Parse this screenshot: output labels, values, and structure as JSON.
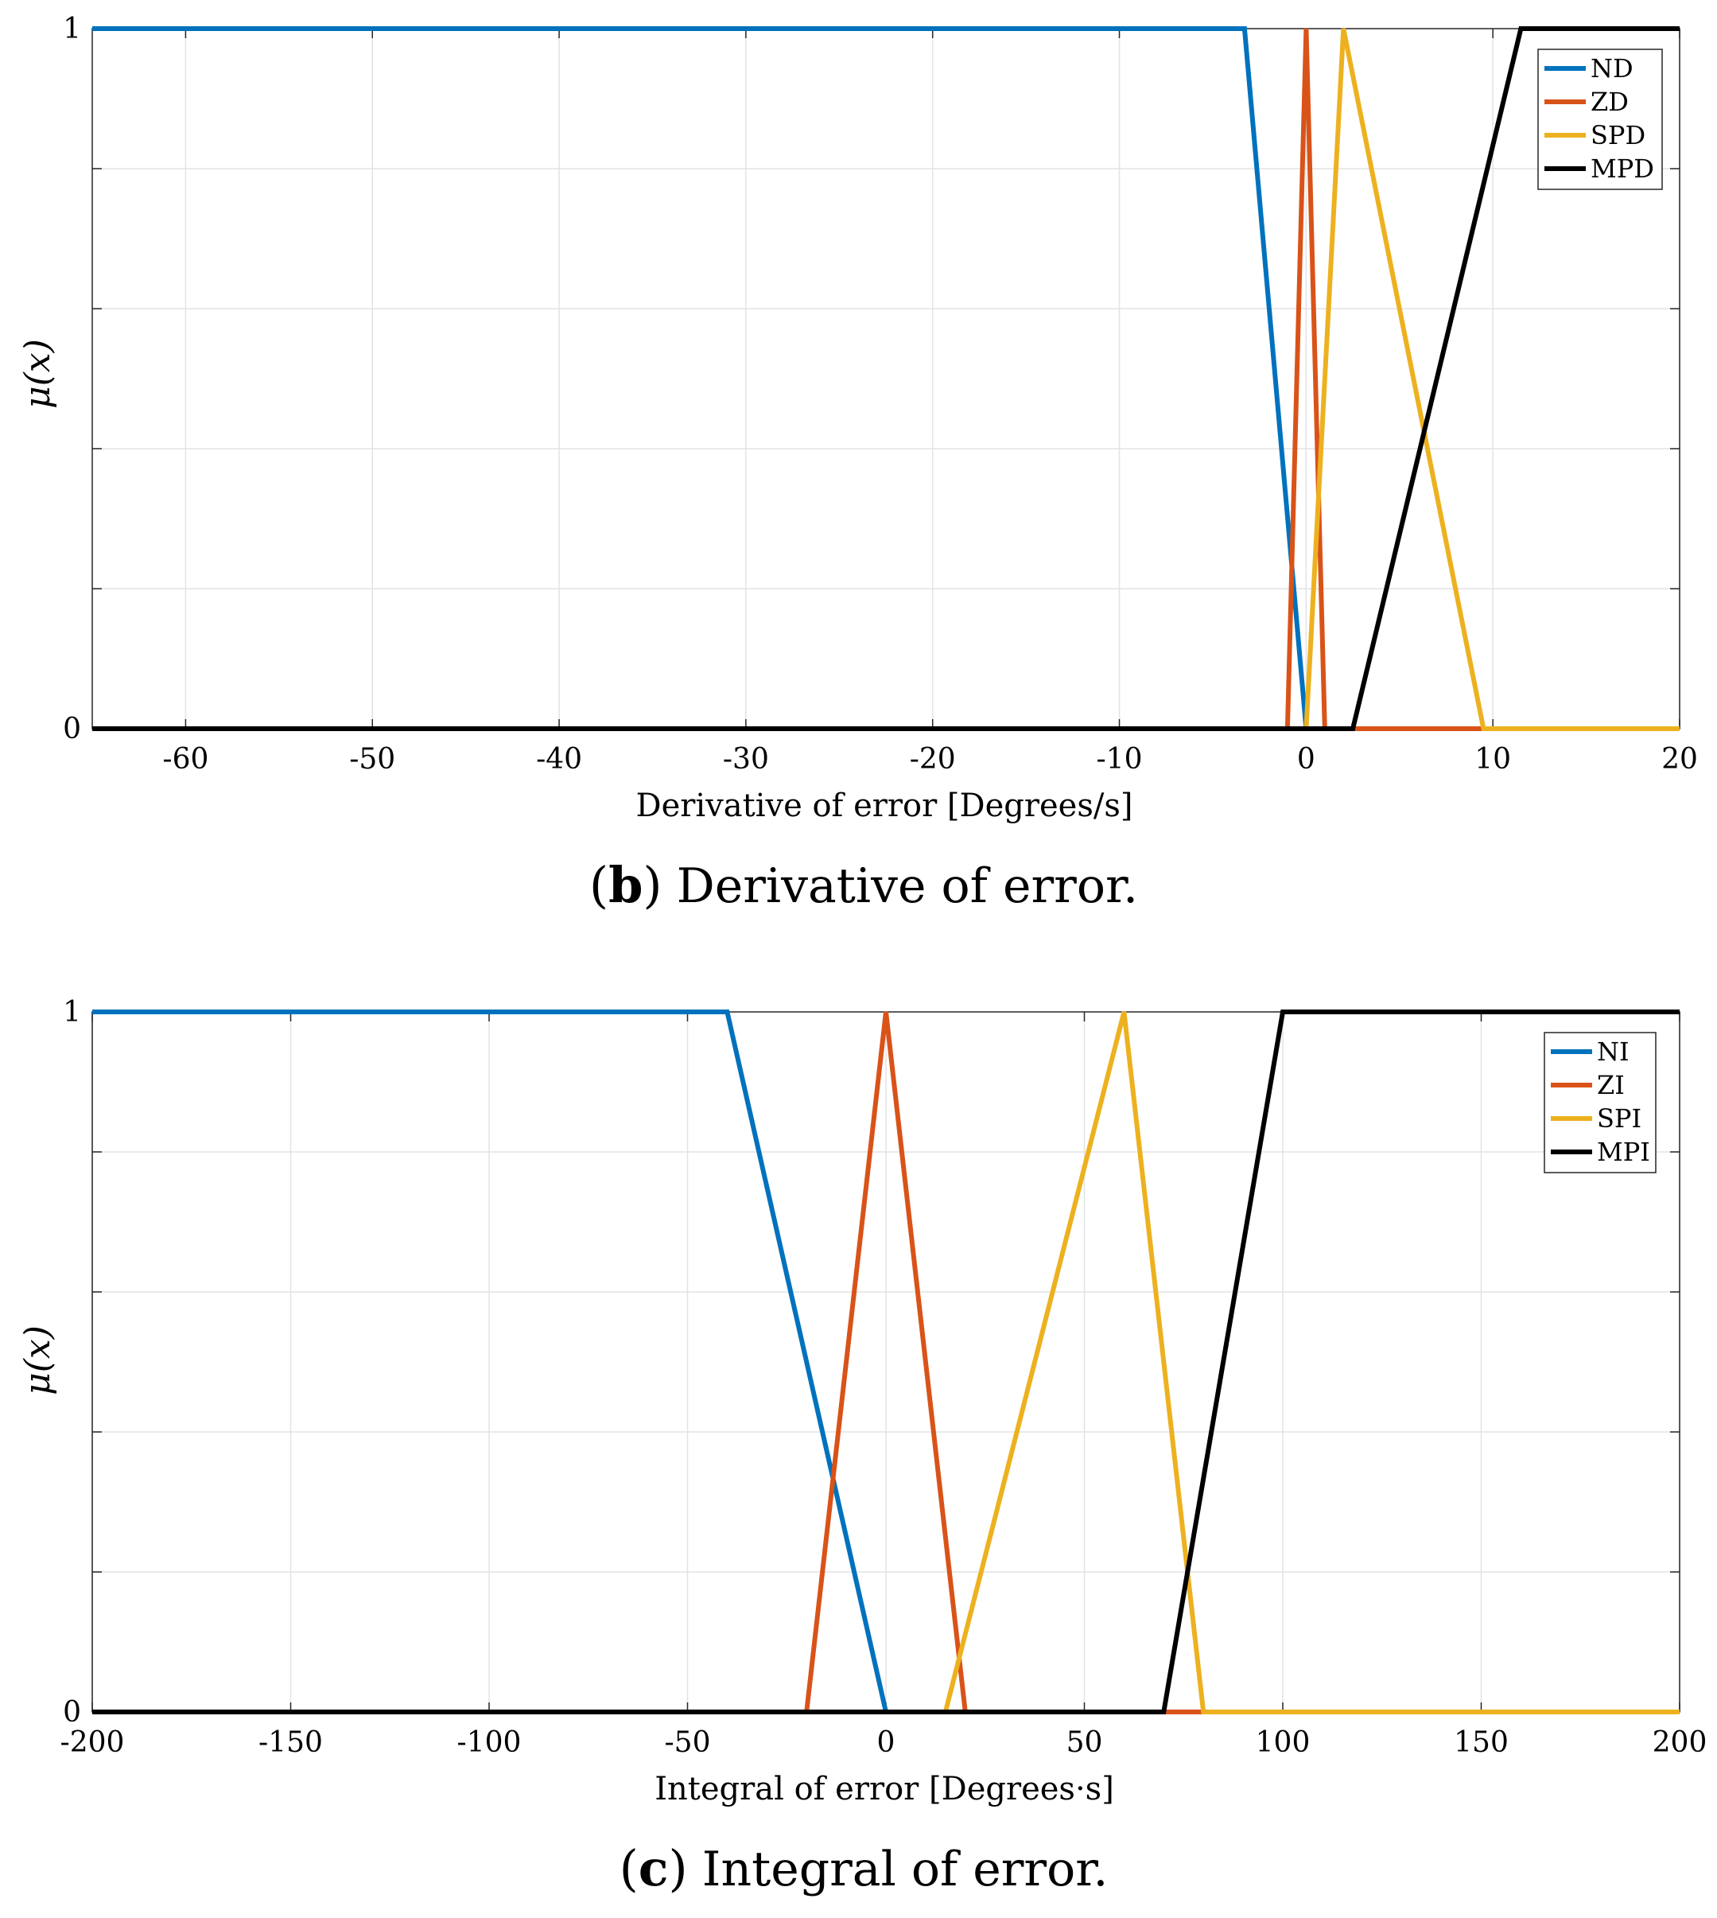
{
  "chart_data": [
    {
      "type": "line",
      "panel": "b",
      "caption_letter": "b",
      "caption_text": "Derivative of error.",
      "xlabel": "Derivative of error [Degrees/s]",
      "ylabel": "μ(x)",
      "xlim": [
        -65,
        20
      ],
      "ylim": [
        0,
        1
      ],
      "xticks": [
        -60,
        -50,
        -40,
        -30,
        -20,
        -10,
        0,
        10,
        20
      ],
      "xtick_labels": [
        "-60",
        "-50",
        "-40",
        "-30",
        "-20",
        "-10",
        "0",
        "10",
        "20"
      ],
      "yticks": [
        0,
        1
      ],
      "ytick_labels": [
        "0",
        "1"
      ],
      "y_minor_grid": [
        0.2,
        0.4,
        0.6,
        0.8
      ],
      "grid": true,
      "legend_position": "top-right",
      "series": [
        {
          "name": "ND",
          "color": "#0072BD",
          "x": [
            -65,
            -3.3,
            0,
            20
          ],
          "y": [
            1,
            1,
            0,
            0
          ]
        },
        {
          "name": "ZD",
          "color": "#D95319",
          "x": [
            -65,
            -1,
            0,
            1,
            20
          ],
          "y": [
            0,
            0,
            1,
            0,
            0
          ]
        },
        {
          "name": "SPD",
          "color": "#EDB120",
          "x": [
            -65,
            0,
            2,
            9.5,
            20
          ],
          "y": [
            0,
            0,
            1,
            0,
            0
          ]
        },
        {
          "name": "MPD",
          "color": "#000000",
          "x": [
            -65,
            2.5,
            11.5,
            20
          ],
          "y": [
            0,
            0,
            1,
            1
          ]
        }
      ]
    },
    {
      "type": "line",
      "panel": "c",
      "caption_letter": "c",
      "caption_text": "Integral of error.",
      "xlabel": "Integral of error [Degrees·s]",
      "ylabel": "μ(x)",
      "xlim": [
        -200,
        200
      ],
      "ylim": [
        0,
        1
      ],
      "xticks": [
        -200,
        -150,
        -100,
        -50,
        0,
        50,
        100,
        150,
        200
      ],
      "xtick_labels": [
        "-200",
        "-150",
        "-100",
        "-50",
        "0",
        "50",
        "100",
        "150",
        "200"
      ],
      "yticks": [
        0,
        1
      ],
      "ytick_labels": [
        "0",
        "1"
      ],
      "y_minor_grid": [
        0.2,
        0.4,
        0.6,
        0.8
      ],
      "grid": true,
      "legend_position": "top-right",
      "series": [
        {
          "name": "NI",
          "color": "#0072BD",
          "x": [
            -200,
            -40,
            0,
            200
          ],
          "y": [
            1,
            1,
            0,
            0
          ]
        },
        {
          "name": "ZI",
          "color": "#D95319",
          "x": [
            -200,
            -20,
            0,
            20,
            200
          ],
          "y": [
            0,
            0,
            1,
            0,
            0
          ]
        },
        {
          "name": "SPI",
          "color": "#EDB120",
          "x": [
            -200,
            15,
            60,
            80,
            200
          ],
          "y": [
            0,
            0,
            1,
            0,
            0
          ]
        },
        {
          "name": "MPI",
          "color": "#000000",
          "x": [
            -200,
            70,
            100,
            200
          ],
          "y": [
            0,
            0,
            1,
            1
          ]
        }
      ]
    }
  ]
}
